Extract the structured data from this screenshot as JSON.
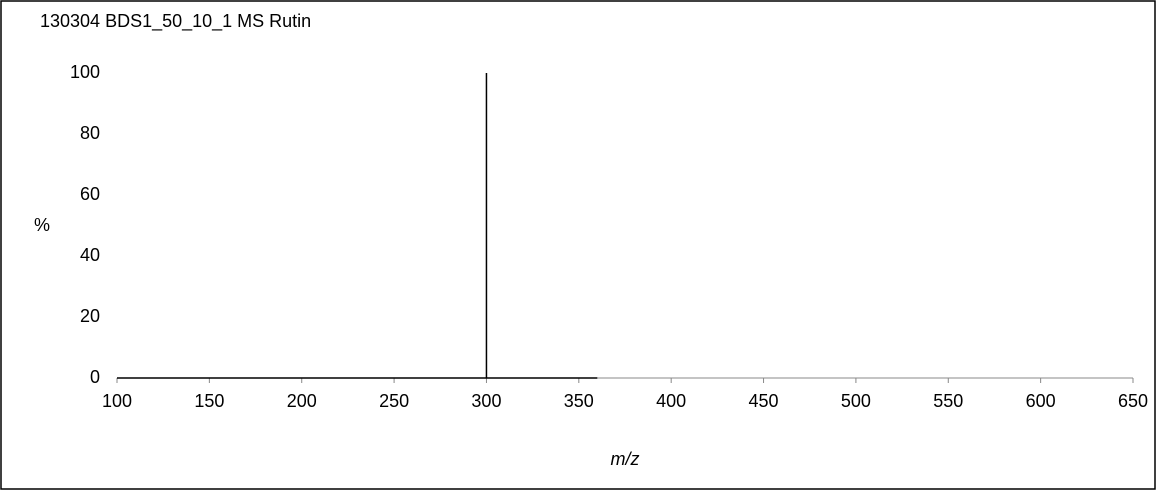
{
  "chart_data": {
    "type": "line",
    "title": "130304 BDS1_50_10_1 MS Rutin",
    "xlabel": "m/z",
    "ylabel": "%",
    "x": [
      100,
      300,
      300,
      300,
      360
    ],
    "values": [
      0,
      0,
      100,
      0,
      0
    ],
    "color": "#000000",
    "xlim": [
      100,
      650
    ],
    "ylim": [
      0,
      100
    ],
    "xticks": [
      100,
      150,
      200,
      250,
      300,
      350,
      400,
      450,
      500,
      550,
      600,
      650
    ],
    "yticks": [
      0,
      20,
      40,
      60,
      80,
      100
    ],
    "grid": false
  }
}
